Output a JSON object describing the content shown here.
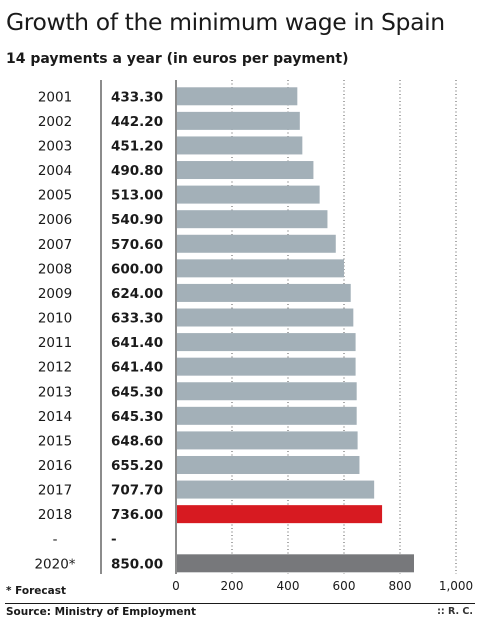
{
  "chart_data": {
    "type": "bar",
    "orientation": "horizontal",
    "title": "Growth of the minimum wage in Spain",
    "subtitle": "14 payments a year (in euros per payment)",
    "categories": [
      "2001",
      "2002",
      "2003",
      "2004",
      "2005",
      "2006",
      "2007",
      "2008",
      "2009",
      "2010",
      "2011",
      "2012",
      "2013",
      "2014",
      "2015",
      "2016",
      "2017",
      "2018",
      "-",
      "2020*"
    ],
    "values": [
      433.3,
      442.2,
      451.2,
      490.8,
      513.0,
      540.9,
      570.6,
      600.0,
      624.0,
      633.3,
      641.4,
      641.4,
      645.3,
      645.3,
      648.6,
      655.2,
      707.7,
      736.0,
      null,
      850.0
    ],
    "value_labels": [
      "433.30",
      "442.20",
      "451.20",
      "490.80",
      "513.00",
      "540.90",
      "570.60",
      "600.00",
      "624.00",
      "633.30",
      "641.40",
      "641.40",
      "645.30",
      "645.30",
      "648.60",
      "655.20",
      "707.70",
      "736.00",
      "-",
      "850.00"
    ],
    "xlim": [
      0,
      1000
    ],
    "xticks": [
      0,
      200,
      400,
      600,
      800,
      1000
    ],
    "xtick_labels": [
      "0",
      "200",
      "400",
      "600",
      "800",
      "1,000"
    ],
    "grid": "vertical dotted",
    "colors": {
      "default": "#a3b0b8",
      "highlight": "#d71a21",
      "forecast": "#77787b"
    },
    "bar_roles": [
      "default",
      "default",
      "default",
      "default",
      "default",
      "default",
      "default",
      "default",
      "default",
      "default",
      "default",
      "default",
      "default",
      "default",
      "default",
      "default",
      "default",
      "highlight",
      "none",
      "forecast"
    ]
  },
  "footnote": "* Forecast",
  "source": "Source: Ministry of Employment",
  "credit": ":: R. C."
}
